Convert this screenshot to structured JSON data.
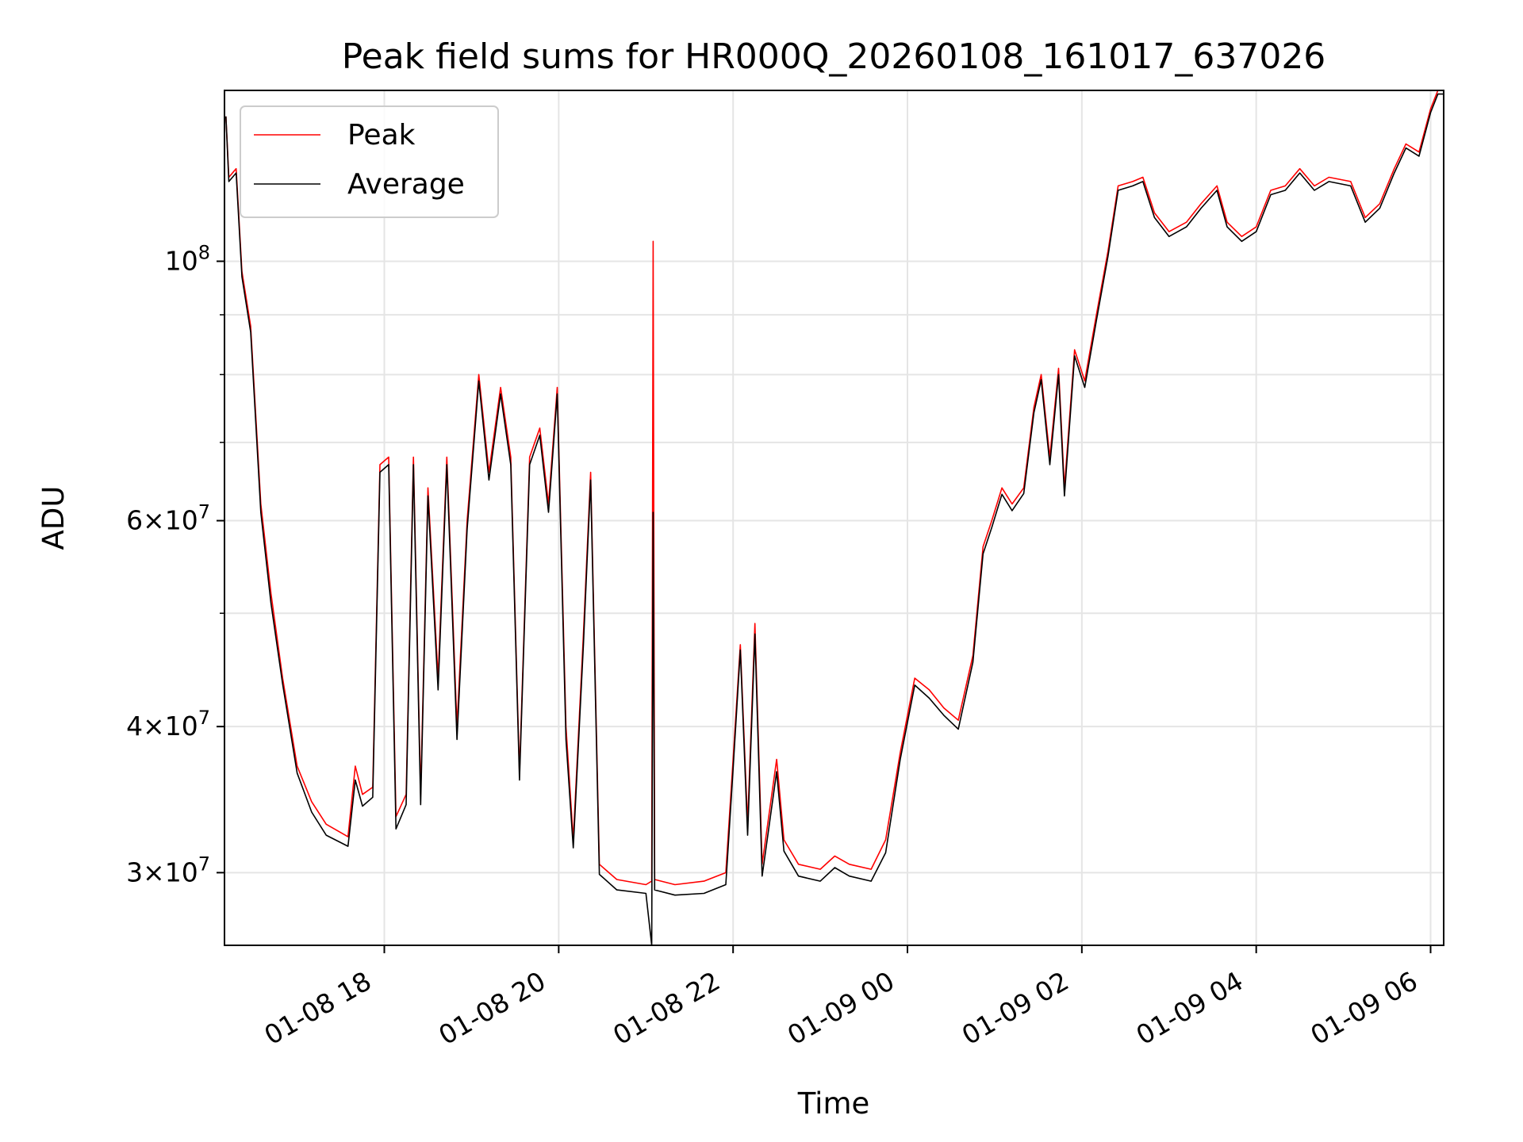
{
  "chart_data": {
    "type": "line",
    "title": "Peak field sums for HR000Q_20260108_161017_637026",
    "xlabel": "Time",
    "ylabel": "ADU",
    "y_scale": "log",
    "ylim": [
      26000000,
      140000000
    ],
    "xlim": [
      "2026-01-08 16:10",
      "2026-01-09 06:09"
    ],
    "x_ticks": [
      "2026-01-08 18:00",
      "2026-01-08 20:00",
      "2026-01-08 22:00",
      "2026-01-09 00:00",
      "2026-01-09 02:00",
      "2026-01-09 04:00",
      "2026-01-09 06:00"
    ],
    "x_tick_labels": [
      "01-08 18",
      "01-08 20",
      "01-08 22",
      "01-09 00",
      "01-09 02",
      "01-09 04",
      "01-09 06"
    ],
    "y_tick_labels": [
      {
        "value": 30000000,
        "mantissa": "3",
        "exponent": "7"
      },
      {
        "value": 40000000,
        "mantissa": "4",
        "exponent": "7"
      },
      {
        "value": 60000000,
        "mantissa": "6",
        "exponent": "7"
      },
      {
        "value": 100000000,
        "mantissa": "",
        "exponent": "8"
      }
    ],
    "y_minor_gridlines": [
      50000000,
      70000000,
      80000000,
      90000000
    ],
    "grid": true,
    "legend_position": "top-left",
    "series": [
      {
        "name": "Peak",
        "color": "#ff0000",
        "points": [
          [
            "2026-01-08 16:11",
            133000000
          ],
          [
            "2026-01-08 16:13",
            118000000
          ],
          [
            "2026-01-08 16:18",
            120000000
          ],
          [
            "2026-01-08 16:22",
            98000000
          ],
          [
            "2026-01-08 16:28",
            88000000
          ],
          [
            "2026-01-08 16:35",
            62000000
          ],
          [
            "2026-01-08 16:42",
            52000000
          ],
          [
            "2026-01-08 16:50",
            44000000
          ],
          [
            "2026-01-08 17:00",
            37000000
          ],
          [
            "2026-01-08 17:10",
            34500000
          ],
          [
            "2026-01-08 17:20",
            33000000
          ],
          [
            "2026-01-08 17:35",
            32200000
          ],
          [
            "2026-01-08 17:40",
            37000000
          ],
          [
            "2026-01-08 17:45",
            35000000
          ],
          [
            "2026-01-08 17:52",
            35500000
          ],
          [
            "2026-01-08 17:57",
            67000000
          ],
          [
            "2026-01-08 18:03",
            68000000
          ],
          [
            "2026-01-08 18:08",
            33500000
          ],
          [
            "2026-01-08 18:15",
            35000000
          ],
          [
            "2026-01-08 18:20",
            68000000
          ],
          [
            "2026-01-08 18:25",
            35000000
          ],
          [
            "2026-01-08 18:30",
            64000000
          ],
          [
            "2026-01-08 18:37",
            44000000
          ],
          [
            "2026-01-08 18:43",
            68000000
          ],
          [
            "2026-01-08 18:50",
            40000000
          ],
          [
            "2026-01-08 18:57",
            60000000
          ],
          [
            "2026-01-08 19:05",
            80000000
          ],
          [
            "2026-01-08 19:12",
            66000000
          ],
          [
            "2026-01-08 19:20",
            78000000
          ],
          [
            "2026-01-08 19:27",
            68000000
          ],
          [
            "2026-01-08 19:33",
            36500000
          ],
          [
            "2026-01-08 19:40",
            68000000
          ],
          [
            "2026-01-08 19:47",
            72000000
          ],
          [
            "2026-01-08 19:53",
            62000000
          ],
          [
            "2026-01-08 19:59",
            78000000
          ],
          [
            "2026-01-08 20:05",
            40000000
          ],
          [
            "2026-01-08 20:10",
            32000000
          ],
          [
            "2026-01-08 20:17",
            48000000
          ],
          [
            "2026-01-08 20:22",
            66000000
          ],
          [
            "2026-01-08 20:28",
            30500000
          ],
          [
            "2026-01-08 20:40",
            29600000
          ],
          [
            "2026-01-08 21:00",
            29300000
          ],
          [
            "2026-01-08 21:04",
            29500000
          ],
          [
            "2026-01-08 21:05",
            104000000
          ],
          [
            "2026-01-08 21:06",
            29600000
          ],
          [
            "2026-01-08 21:20",
            29300000
          ],
          [
            "2026-01-08 21:40",
            29500000
          ],
          [
            "2026-01-08 21:55",
            30000000
          ],
          [
            "2026-01-08 22:00",
            37500000
          ],
          [
            "2026-01-08 22:05",
            47000000
          ],
          [
            "2026-01-08 22:10",
            33000000
          ],
          [
            "2026-01-08 22:15",
            49000000
          ],
          [
            "2026-01-08 22:20",
            30500000
          ],
          [
            "2026-01-08 22:30",
            37500000
          ],
          [
            "2026-01-08 22:35",
            32000000
          ],
          [
            "2026-01-08 22:45",
            30500000
          ],
          [
            "2026-01-08 23:00",
            30200000
          ],
          [
            "2026-01-08 23:10",
            31000000
          ],
          [
            "2026-01-08 23:20",
            30500000
          ],
          [
            "2026-01-08 23:35",
            30200000
          ],
          [
            "2026-01-08 23:45",
            32000000
          ],
          [
            "2026-01-08 23:55",
            38000000
          ],
          [
            "2026-01-09 00:05",
            44000000
          ],
          [
            "2026-01-09 00:15",
            43000000
          ],
          [
            "2026-01-09 00:25",
            41500000
          ],
          [
            "2026-01-09 00:35",
            40500000
          ],
          [
            "2026-01-09 00:45",
            46000000
          ],
          [
            "2026-01-09 00:52",
            57000000
          ],
          [
            "2026-01-09 00:58",
            60000000
          ],
          [
            "2026-01-09 01:05",
            64000000
          ],
          [
            "2026-01-09 01:12",
            62000000
          ],
          [
            "2026-01-09 01:20",
            64000000
          ],
          [
            "2026-01-09 01:27",
            75000000
          ],
          [
            "2026-01-09 01:32",
            80000000
          ],
          [
            "2026-01-09 01:38",
            68000000
          ],
          [
            "2026-01-09 01:44",
            81000000
          ],
          [
            "2026-01-09 01:48",
            64000000
          ],
          [
            "2026-01-09 01:55",
            84000000
          ],
          [
            "2026-01-09 02:02",
            79000000
          ],
          [
            "2026-01-09 02:10",
            90000000
          ],
          [
            "2026-01-09 02:18",
            102000000
          ],
          [
            "2026-01-09 02:25",
            116000000
          ],
          [
            "2026-01-09 02:35",
            117000000
          ],
          [
            "2026-01-09 02:42",
            118000000
          ],
          [
            "2026-01-09 02:50",
            110000000
          ],
          [
            "2026-01-09 03:00",
            106000000
          ],
          [
            "2026-01-09 03:12",
            108000000
          ],
          [
            "2026-01-09 03:22",
            112000000
          ],
          [
            "2026-01-09 03:33",
            116000000
          ],
          [
            "2026-01-09 03:40",
            108000000
          ],
          [
            "2026-01-09 03:50",
            105000000
          ],
          [
            "2026-01-09 04:00",
            107000000
          ],
          [
            "2026-01-09 04:10",
            115000000
          ],
          [
            "2026-01-09 04:20",
            116000000
          ],
          [
            "2026-01-09 04:30",
            120000000
          ],
          [
            "2026-01-09 04:40",
            116000000
          ],
          [
            "2026-01-09 04:50",
            118000000
          ],
          [
            "2026-01-09 05:05",
            117000000
          ],
          [
            "2026-01-09 05:15",
            109000000
          ],
          [
            "2026-01-09 05:25",
            112000000
          ],
          [
            "2026-01-09 05:35",
            120000000
          ],
          [
            "2026-01-09 05:43",
            126000000
          ],
          [
            "2026-01-09 05:52",
            124000000
          ],
          [
            "2026-01-09 06:00",
            135000000
          ],
          [
            "2026-01-09 06:05",
            140000000
          ],
          [
            "2026-01-09 06:09",
            140000000
          ]
        ]
      },
      {
        "name": "Average",
        "color": "#000000",
        "points": [
          [
            "2026-01-08 16:11",
            133000000
          ],
          [
            "2026-01-08 16:13",
            117000000
          ],
          [
            "2026-01-08 16:18",
            119000000
          ],
          [
            "2026-01-08 16:22",
            97000000
          ],
          [
            "2026-01-08 16:28",
            87000000
          ],
          [
            "2026-01-08 16:35",
            61000000
          ],
          [
            "2026-01-08 16:42",
            51000000
          ],
          [
            "2026-01-08 16:50",
            43500000
          ],
          [
            "2026-01-08 17:00",
            36500000
          ],
          [
            "2026-01-08 17:10",
            33800000
          ],
          [
            "2026-01-08 17:20",
            32300000
          ],
          [
            "2026-01-08 17:35",
            31600000
          ],
          [
            "2026-01-08 17:40",
            36000000
          ],
          [
            "2026-01-08 17:45",
            34200000
          ],
          [
            "2026-01-08 17:52",
            34800000
          ],
          [
            "2026-01-08 17:57",
            66000000
          ],
          [
            "2026-01-08 18:03",
            67000000
          ],
          [
            "2026-01-08 18:08",
            32700000
          ],
          [
            "2026-01-08 18:15",
            34300000
          ],
          [
            "2026-01-08 18:20",
            67000000
          ],
          [
            "2026-01-08 18:25",
            34300000
          ],
          [
            "2026-01-08 18:30",
            63000000
          ],
          [
            "2026-01-08 18:37",
            43000000
          ],
          [
            "2026-01-08 18:43",
            67000000
          ],
          [
            "2026-01-08 18:50",
            39000000
          ],
          [
            "2026-01-08 18:57",
            59000000
          ],
          [
            "2026-01-08 19:05",
            79000000
          ],
          [
            "2026-01-08 19:12",
            65000000
          ],
          [
            "2026-01-08 19:20",
            77000000
          ],
          [
            "2026-01-08 19:27",
            67000000
          ],
          [
            "2026-01-08 19:33",
            36000000
          ],
          [
            "2026-01-08 19:40",
            67000000
          ],
          [
            "2026-01-08 19:47",
            71000000
          ],
          [
            "2026-01-08 19:53",
            61000000
          ],
          [
            "2026-01-08 19:59",
            77000000
          ],
          [
            "2026-01-08 20:05",
            39000000
          ],
          [
            "2026-01-08 20:10",
            31500000
          ],
          [
            "2026-01-08 20:17",
            47000000
          ],
          [
            "2026-01-08 20:22",
            65000000
          ],
          [
            "2026-01-08 20:28",
            29900000
          ],
          [
            "2026-01-08 20:40",
            29000000
          ],
          [
            "2026-01-08 21:00",
            28800000
          ],
          [
            "2026-01-08 21:04",
            26000000
          ],
          [
            "2026-01-08 21:05",
            61000000
          ],
          [
            "2026-01-08 21:06",
            29000000
          ],
          [
            "2026-01-08 21:20",
            28700000
          ],
          [
            "2026-01-08 21:40",
            28800000
          ],
          [
            "2026-01-08 21:55",
            29300000
          ],
          [
            "2026-01-08 22:00",
            36800000
          ],
          [
            "2026-01-08 22:05",
            46500000
          ],
          [
            "2026-01-08 22:10",
            32300000
          ],
          [
            "2026-01-08 22:15",
            48000000
          ],
          [
            "2026-01-08 22:20",
            29800000
          ],
          [
            "2026-01-08 22:30",
            36600000
          ],
          [
            "2026-01-08 22:35",
            31300000
          ],
          [
            "2026-01-08 22:45",
            29800000
          ],
          [
            "2026-01-08 23:00",
            29500000
          ],
          [
            "2026-01-08 23:10",
            30300000
          ],
          [
            "2026-01-08 23:20",
            29800000
          ],
          [
            "2026-01-08 23:35",
            29500000
          ],
          [
            "2026-01-08 23:45",
            31200000
          ],
          [
            "2026-01-08 23:55",
            37500000
          ],
          [
            "2026-01-09 00:05",
            43400000
          ],
          [
            "2026-01-09 00:15",
            42300000
          ],
          [
            "2026-01-09 00:25",
            40900000
          ],
          [
            "2026-01-09 00:35",
            39800000
          ],
          [
            "2026-01-09 00:45",
            45400000
          ],
          [
            "2026-01-09 00:52",
            56200000
          ],
          [
            "2026-01-09 00:58",
            59200000
          ],
          [
            "2026-01-09 01:05",
            63200000
          ],
          [
            "2026-01-09 01:12",
            61200000
          ],
          [
            "2026-01-09 01:20",
            63300000
          ],
          [
            "2026-01-09 01:27",
            74200000
          ],
          [
            "2026-01-09 01:32",
            79200000
          ],
          [
            "2026-01-09 01:38",
            67000000
          ],
          [
            "2026-01-09 01:44",
            80000000
          ],
          [
            "2026-01-09 01:48",
            63000000
          ],
          [
            "2026-01-09 01:55",
            83000000
          ],
          [
            "2026-01-09 02:02",
            78000000
          ],
          [
            "2026-01-09 02:10",
            89000000
          ],
          [
            "2026-01-09 02:18",
            101000000
          ],
          [
            "2026-01-09 02:25",
            115000000
          ],
          [
            "2026-01-09 02:35",
            116000000
          ],
          [
            "2026-01-09 02:42",
            117000000
          ],
          [
            "2026-01-09 02:50",
            109000000
          ],
          [
            "2026-01-09 03:00",
            105000000
          ],
          [
            "2026-01-09 03:12",
            107000000
          ],
          [
            "2026-01-09 03:22",
            111000000
          ],
          [
            "2026-01-09 03:33",
            115000000
          ],
          [
            "2026-01-09 03:40",
            107000000
          ],
          [
            "2026-01-09 03:50",
            104000000
          ],
          [
            "2026-01-09 04:00",
            106000000
          ],
          [
            "2026-01-09 04:10",
            114000000
          ],
          [
            "2026-01-09 04:20",
            115000000
          ],
          [
            "2026-01-09 04:30",
            119000000
          ],
          [
            "2026-01-09 04:40",
            115000000
          ],
          [
            "2026-01-09 04:50",
            117000000
          ],
          [
            "2026-01-09 05:05",
            116000000
          ],
          [
            "2026-01-09 05:15",
            108000000
          ],
          [
            "2026-01-09 05:25",
            111000000
          ],
          [
            "2026-01-09 05:35",
            119000000
          ],
          [
            "2026-01-09 05:43",
            125000000
          ],
          [
            "2026-01-09 05:52",
            123000000
          ],
          [
            "2026-01-09 06:00",
            134000000
          ],
          [
            "2026-01-09 06:05",
            139000000
          ],
          [
            "2026-01-09 06:09",
            139000000
          ]
        ]
      }
    ]
  }
}
